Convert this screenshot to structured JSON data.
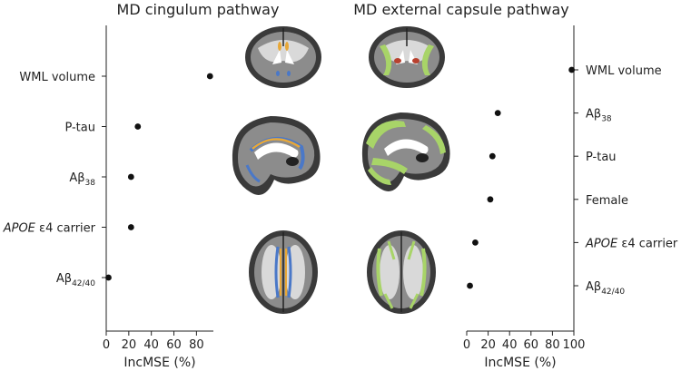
{
  "chart_data": [
    {
      "type": "scatter",
      "title": "MD cingulum pathway",
      "xlabel": "IncMSE (%)",
      "xlim": [
        0,
        95
      ],
      "xticks": [
        0,
        20,
        40,
        60,
        80
      ],
      "categories": [
        "WML volume",
        "P-tau",
        "Aβ38",
        "APOE ε4 carrier",
        "Aβ42/40"
      ],
      "category_labels": [
        {
          "base": "WML volume",
          "sub": ""
        },
        {
          "base": "P-tau",
          "sub": ""
        },
        {
          "base": "Aβ",
          "sub": "38"
        },
        {
          "base": "APOE",
          "rest": " ε4 carrier",
          "italic": true
        },
        {
          "base": "Aβ",
          "sub": "42/40"
        }
      ],
      "values": [
        92,
        28,
        22,
        22,
        2
      ]
    },
    {
      "type": "scatter",
      "title": "MD external capsule pathway",
      "xlabel": "IncMSE (%)",
      "xlim": [
        0,
        100
      ],
      "xticks": [
        0,
        20,
        40,
        60,
        80,
        100
      ],
      "categories": [
        "WML volume",
        "Aβ38",
        "P-tau",
        "Female",
        "APOE ε4 carrier",
        "Aβ42/40"
      ],
      "category_labels": [
        {
          "base": "WML volume",
          "sub": ""
        },
        {
          "base": "Aβ",
          "sub": "38"
        },
        {
          "base": "P-tau",
          "sub": ""
        },
        {
          "base": "Female",
          "sub": ""
        },
        {
          "base": "APOE",
          "rest": " ε4 carrier",
          "italic": true
        },
        {
          "base": "Aβ",
          "sub": "42/40"
        }
      ],
      "values": [
        98,
        29,
        24,
        22,
        8,
        3
      ]
    }
  ],
  "colors": {
    "brain_dark": "#3a3a3a",
    "brain_mid": "#8c8c8c",
    "white_matter": "#d9d9d9",
    "tract_orange": "#e8a838",
    "tract_blue": "#4a78c8",
    "tract_green": "#a8d468",
    "lesion_red": "#b8412f"
  }
}
